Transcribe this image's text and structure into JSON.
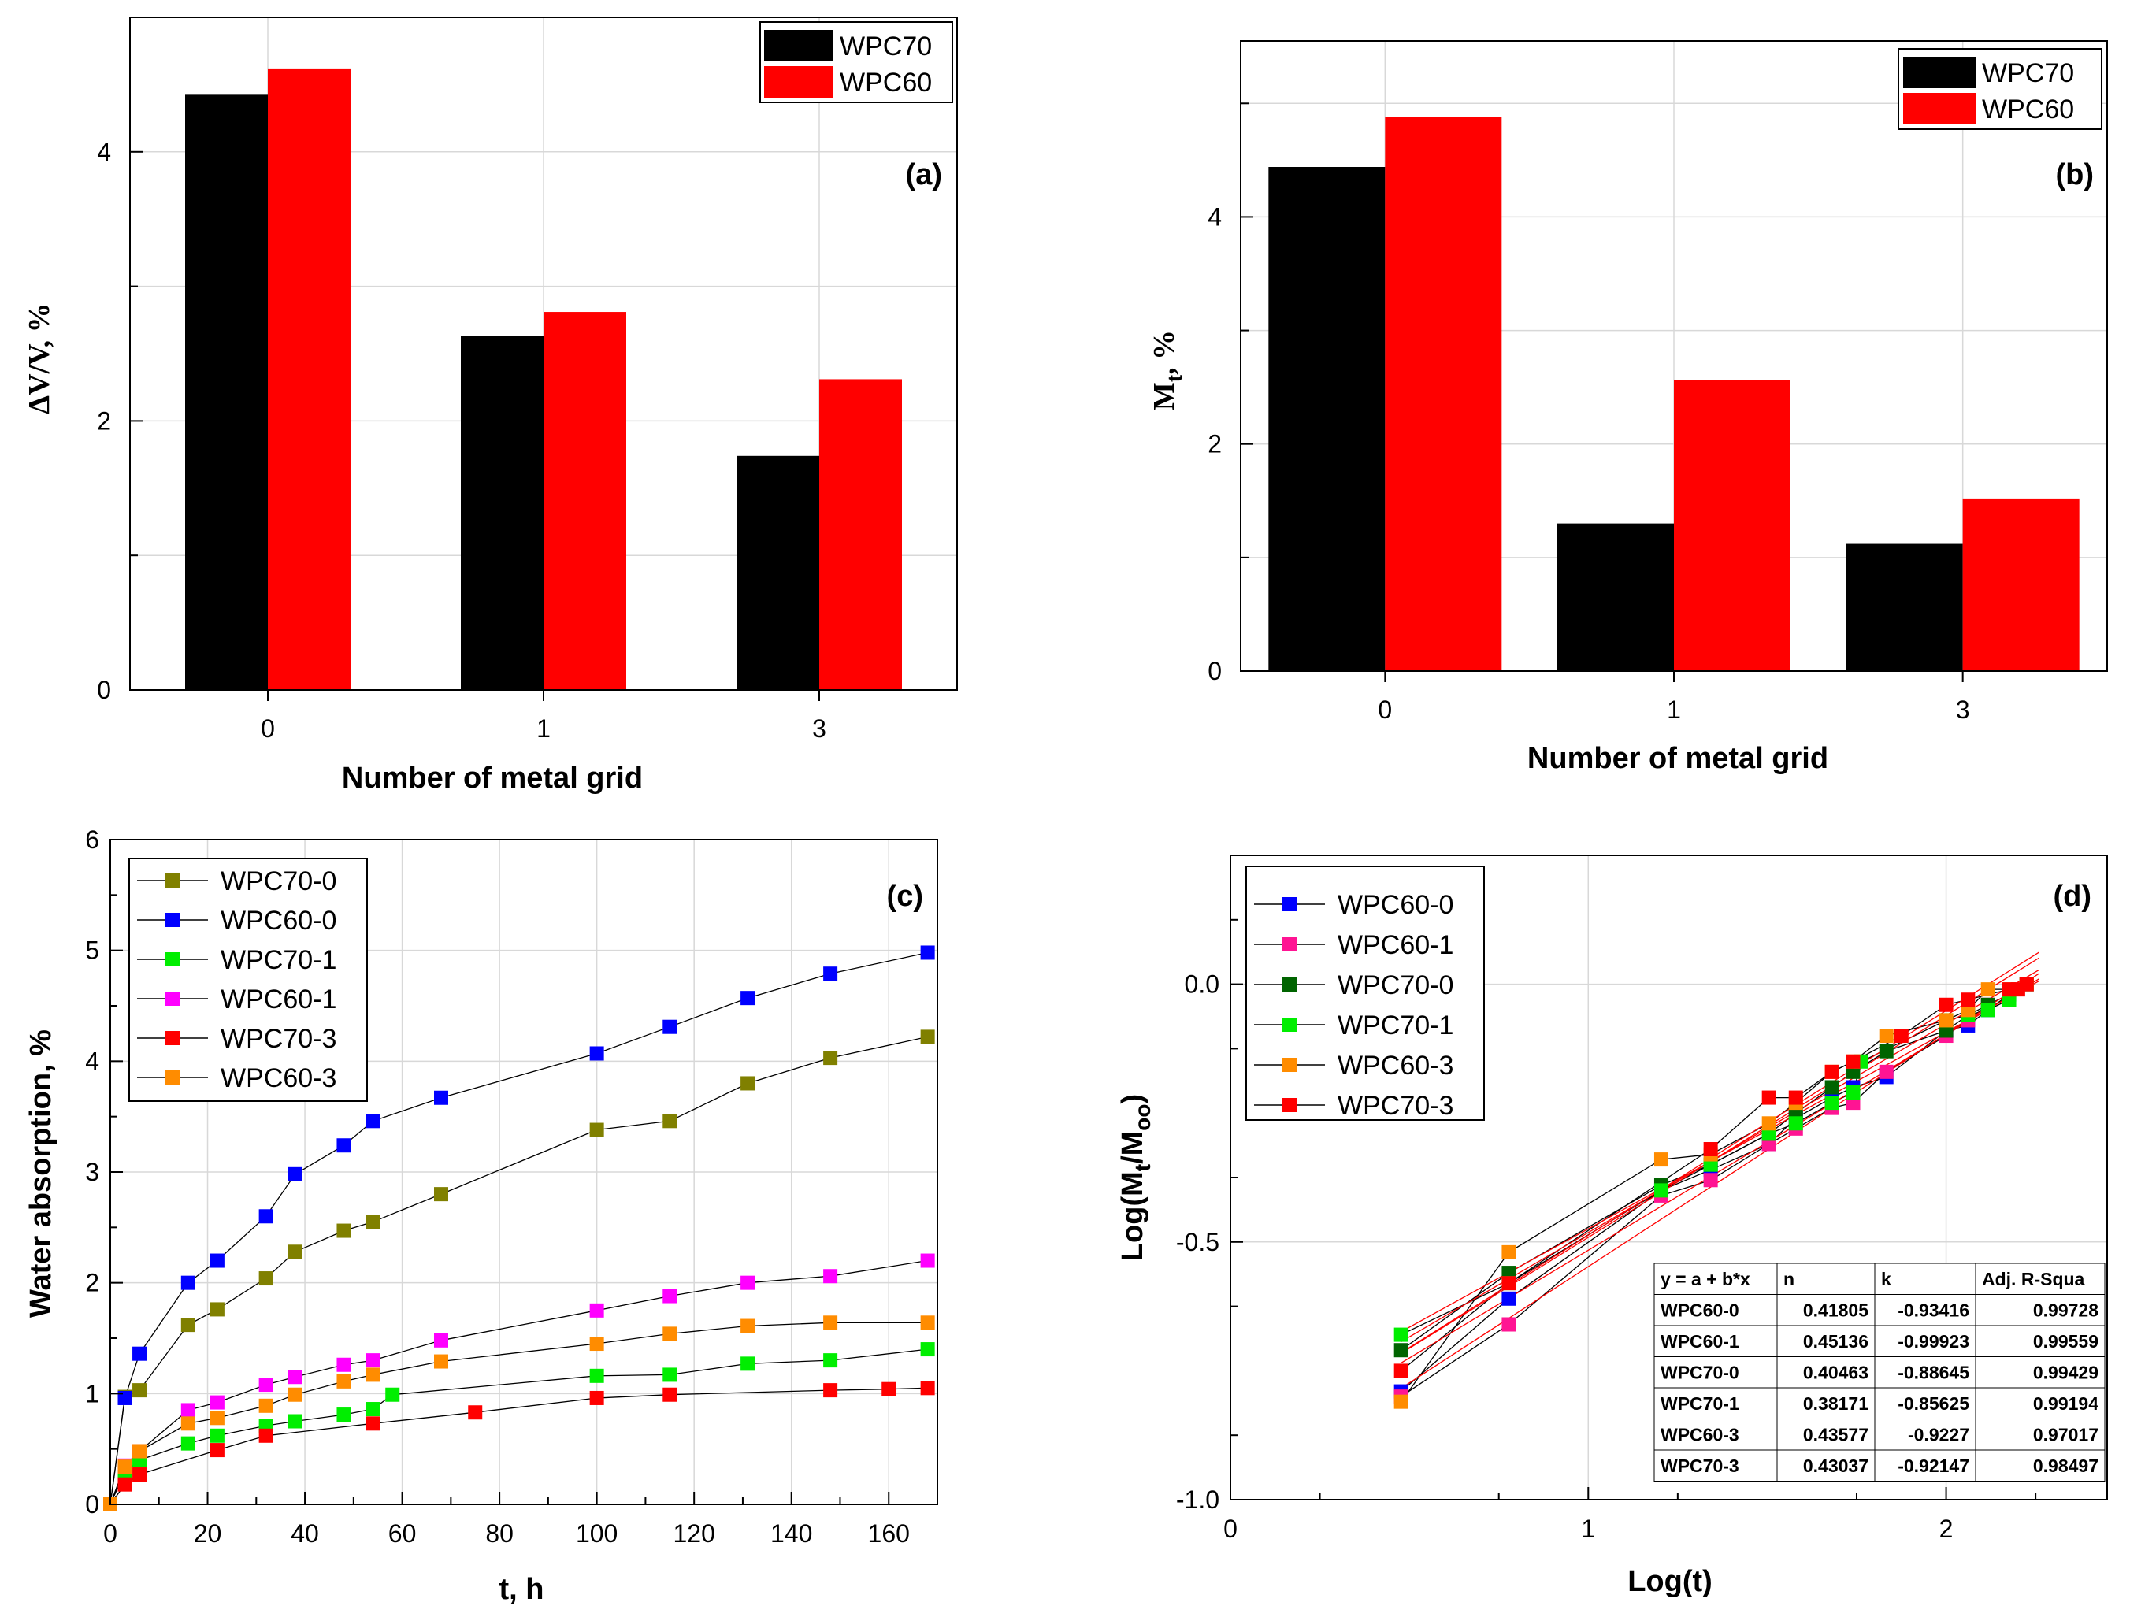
{
  "colors": {
    "black": "#000000",
    "red": "#ff0000",
    "olive": "#808000",
    "blue": "#0000ff",
    "green": "#00ee00",
    "darkgreen": "#006400",
    "magenta": "#ff00ff",
    "pink": "#ff1493",
    "orange": "#ff8c00"
  },
  "chart_data": [
    {
      "id": "a",
      "type": "bar",
      "tag": "(a)",
      "title": "",
      "xlabel": "Number of metal grid",
      "ylabel": "ΔV/V, %",
      "categories": [
        "0",
        "1",
        "3"
      ],
      "yticks": [
        "0",
        "2",
        "4"
      ],
      "ylim": [
        0,
        5
      ],
      "series": [
        {
          "name": "WPC70",
          "color": "#000000",
          "values": [
            4.43,
            2.63,
            1.74
          ]
        },
        {
          "name": "WPC60",
          "color": "#ff0000",
          "values": [
            4.62,
            2.81,
            2.31
          ]
        }
      ],
      "legend": "top-right",
      "grid": true
    },
    {
      "id": "b",
      "type": "bar",
      "tag": "(b)",
      "title": "",
      "xlabel": "Number of metal grid",
      "ylabel": "Mt, %",
      "ylabel_main": "M",
      "ylabel_sub": "t",
      "ylabel_tail": ", %",
      "categories": [
        "0",
        "1",
        "3"
      ],
      "yticks": [
        "0",
        "2",
        "4"
      ],
      "ylim": [
        0,
        5.55
      ],
      "series": [
        {
          "name": "WPC70",
          "color": "#000000",
          "values": [
            4.44,
            1.3,
            1.12
          ]
        },
        {
          "name": "WPC60",
          "color": "#ff0000",
          "values": [
            4.88,
            2.56,
            1.52
          ]
        }
      ],
      "legend": "top-right",
      "grid": true
    },
    {
      "id": "c",
      "type": "line",
      "tag": "(c)",
      "title": "",
      "xlabel": "t, h",
      "ylabel": "Water absorption, %",
      "xlim": [
        0,
        170
      ],
      "ylim": [
        0,
        6
      ],
      "xticks": [
        "0",
        "20",
        "40",
        "60",
        "80",
        "100",
        "120",
        "140",
        "160"
      ],
      "yticks": [
        "0",
        "1",
        "2",
        "3",
        "4",
        "5",
        "6"
      ],
      "legend": "top-left",
      "grid": true,
      "series": [
        {
          "name": "WPC70-0",
          "color": "#808000",
          "x": [
            0,
            3,
            6,
            16,
            22,
            32,
            38,
            48,
            54,
            68,
            100,
            115,
            131,
            148,
            168
          ],
          "y": [
            0,
            0.97,
            1.03,
            1.62,
            1.76,
            2.04,
            2.28,
            2.47,
            2.55,
            2.8,
            3.38,
            3.46,
            3.8,
            4.03,
            4.22
          ]
        },
        {
          "name": "WPC60-0",
          "color": "#0000ff",
          "x": [
            0,
            3,
            6,
            16,
            22,
            32,
            38,
            48,
            54,
            68,
            100,
            115,
            131,
            148,
            168
          ],
          "y": [
            0,
            0.96,
            1.36,
            2.0,
            2.2,
            2.6,
            2.98,
            3.24,
            3.46,
            3.67,
            4.07,
            4.31,
            4.57,
            4.79,
            4.98
          ]
        },
        {
          "name": "WPC70-1",
          "color": "#00ee00",
          "x": [
            0,
            3,
            6,
            16,
            22,
            32,
            38,
            48,
            54,
            58,
            100,
            115,
            131,
            148,
            168
          ],
          "y": [
            0,
            0.29,
            0.4,
            0.55,
            0.62,
            0.71,
            0.75,
            0.81,
            0.86,
            0.99,
            1.16,
            1.17,
            1.27,
            1.3,
            1.4
          ]
        },
        {
          "name": "WPC60-1",
          "color": "#ff00ff",
          "x": [
            0,
            3,
            6,
            16,
            22,
            32,
            38,
            48,
            54,
            68,
            100,
            115,
            131,
            148,
            168
          ],
          "y": [
            0,
            0.35,
            0.48,
            0.85,
            0.92,
            1.08,
            1.15,
            1.26,
            1.3,
            1.48,
            1.75,
            1.88,
            2.0,
            2.06,
            2.2
          ]
        },
        {
          "name": "WPC70-3",
          "color": "#ff0000",
          "x": [
            0,
            3,
            6,
            22,
            32,
            54,
            75,
            100,
            115,
            148,
            160,
            168
          ],
          "y": [
            0,
            0.18,
            0.27,
            0.49,
            0.62,
            0.73,
            0.83,
            0.96,
            0.99,
            1.03,
            1.04,
            1.05
          ]
        },
        {
          "name": "WPC60-3",
          "color": "#ff8c00",
          "x": [
            0,
            3,
            6,
            16,
            22,
            32,
            38,
            48,
            54,
            68,
            100,
            115,
            131,
            148,
            168
          ],
          "y": [
            0,
            0.34,
            0.48,
            0.73,
            0.78,
            0.89,
            0.99,
            1.11,
            1.17,
            1.29,
            1.45,
            1.54,
            1.61,
            1.64,
            1.64
          ]
        }
      ]
    },
    {
      "id": "d",
      "type": "scatter",
      "tag": "(d)",
      "title": "",
      "xlabel": "Log(t)",
      "ylabel": "Log(Mt/Moo)",
      "ylabel_pre": "Log(M",
      "ylabel_sub1": "t",
      "ylabel_mid": "/M",
      "ylabel_sub2": "oo",
      "ylabel_tail": ")",
      "xlim": [
        0,
        2.45
      ],
      "ylim": [
        -1.0,
        0.25
      ],
      "xticks": [
        "0",
        "1",
        "2"
      ],
      "yticks": [
        "-1.0",
        "-0.5",
        "0.0"
      ],
      "legend": "top-left",
      "grid": true,
      "fit_color": "#ff0000",
      "series": [
        {
          "name": "WPC60-0",
          "color": "#0000ff",
          "x": [
            0.477,
            0.778,
            1.204,
            1.342,
            1.505,
            1.58,
            1.681,
            1.74,
            1.833,
            2.0,
            2.061,
            2.117,
            2.176,
            2.225
          ],
          "y": [
            -0.79,
            -0.61,
            -0.4,
            -0.36,
            -0.31,
            -0.26,
            -0.22,
            -0.2,
            -0.18,
            -0.09,
            -0.08,
            -0.05,
            -0.02,
            0.0
          ]
        },
        {
          "name": "WPC60-1",
          "color": "#ff1493",
          "x": [
            0.477,
            0.778,
            1.204,
            1.342,
            1.505,
            1.58,
            1.681,
            1.74,
            1.833,
            2.0,
            2.061,
            2.117,
            2.176,
            2.225
          ],
          "y": [
            -0.8,
            -0.66,
            -0.41,
            -0.38,
            -0.31,
            -0.28,
            -0.24,
            -0.23,
            -0.17,
            -0.1,
            -0.07,
            -0.04,
            -0.02,
            0.0
          ]
        },
        {
          "name": "WPC70-0",
          "color": "#006400",
          "x": [
            0.477,
            0.778,
            1.204,
            1.342,
            1.505,
            1.58,
            1.681,
            1.74,
            1.833,
            2.0,
            2.061,
            2.117,
            2.176,
            2.225
          ],
          "y": [
            -0.71,
            -0.56,
            -0.39,
            -0.35,
            -0.29,
            -0.25,
            -0.2,
            -0.17,
            -0.13,
            -0.09,
            -0.06,
            -0.04,
            -0.02,
            0.0
          ]
        },
        {
          "name": "WPC70-1",
          "color": "#00ee00",
          "x": [
            0.477,
            0.778,
            1.204,
            1.342,
            1.505,
            1.58,
            1.681,
            1.74,
            1.763,
            2.0,
            2.061,
            2.117,
            2.176,
            2.225
          ],
          "y": [
            -0.68,
            -0.58,
            -0.4,
            -0.35,
            -0.29,
            -0.27,
            -0.23,
            -0.21,
            -0.15,
            -0.07,
            -0.06,
            -0.05,
            -0.03,
            0.0
          ]
        },
        {
          "name": "WPC60-3",
          "color": "#ff8c00",
          "x": [
            0.477,
            0.778,
            1.204,
            1.342,
            1.505,
            1.58,
            1.681,
            1.74,
            1.833,
            2.0,
            2.061,
            2.117,
            2.176,
            2.225
          ],
          "y": [
            -0.81,
            -0.52,
            -0.34,
            -0.33,
            -0.27,
            -0.23,
            -0.17,
            -0.15,
            -0.1,
            -0.07,
            -0.05,
            -0.01,
            -0.01,
            0.0
          ]
        },
        {
          "name": "WPC70-3",
          "color": "#ff0000",
          "x": [
            0.477,
            0.778,
            1.342,
            1.505,
            1.58,
            1.681,
            1.74,
            1.875,
            2.0,
            2.061,
            2.176,
            2.201,
            2.225
          ],
          "y": [
            -0.75,
            -0.58,
            -0.32,
            -0.22,
            -0.22,
            -0.17,
            -0.15,
            -0.1,
            -0.04,
            -0.03,
            -0.01,
            -0.01,
            0.0
          ]
        }
      ],
      "fits": [
        {
          "name": "WPC60-0",
          "a": -0.93416,
          "b": 0.41805
        },
        {
          "name": "WPC60-1",
          "a": -0.99923,
          "b": 0.45136
        },
        {
          "name": "WPC70-0",
          "a": -0.88645,
          "b": 0.40463
        },
        {
          "name": "WPC70-1",
          "a": -0.85625,
          "b": 0.38171
        },
        {
          "name": "WPC60-3",
          "a": -0.9227,
          "b": 0.43577
        },
        {
          "name": "WPC70-3",
          "a": -0.92147,
          "b": 0.43037
        }
      ],
      "fit_table": {
        "headers": [
          "y = a + b*x",
          "n",
          "k",
          "Adj. R-Squa"
        ],
        "rows": [
          [
            "WPC60-0",
            "0.41805",
            "-0.93416",
            "0.99728"
          ],
          [
            "WPC60-1",
            "0.45136",
            "-0.99923",
            "0.99559"
          ],
          [
            "WPC70-0",
            "0.40463",
            "-0.88645",
            "0.99429"
          ],
          [
            "WPC70-1",
            "0.38171",
            "-0.85625",
            "0.99194"
          ],
          [
            "WPC60-3",
            "0.43577",
            "-0.9227",
            "0.97017"
          ],
          [
            "WPC70-3",
            "0.43037",
            "-0.92147",
            "0.98497"
          ]
        ]
      }
    }
  ]
}
